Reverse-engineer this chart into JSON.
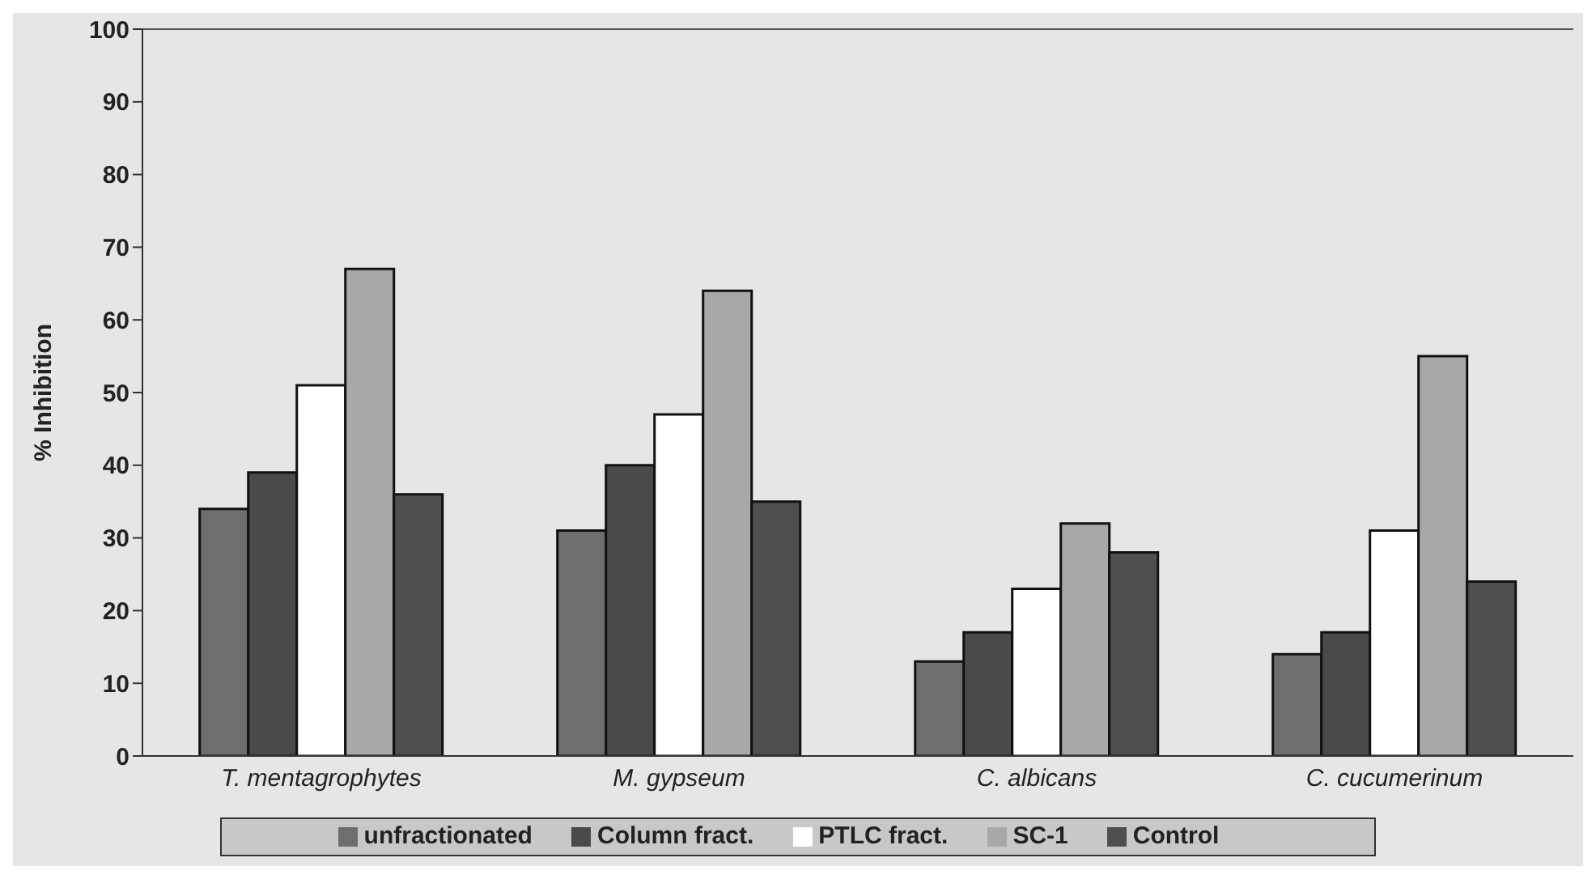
{
  "chart_data": {
    "type": "bar",
    "ylabel": "% Inhibition",
    "categories": [
      "T. mentagrophytes",
      "M. gypseum",
      "C. albicans",
      "C. cucumerinum"
    ],
    "series": [
      {
        "name": "unfractionated",
        "color": "#6e6e6e",
        "values": [
          34,
          31,
          13,
          14
        ]
      },
      {
        "name": "Column fract.",
        "color": "#4a4a4a",
        "values": [
          39,
          40,
          17,
          17
        ]
      },
      {
        "name": "PTLC fract.",
        "color": "#ffffff",
        "values": [
          51,
          47,
          23,
          31
        ]
      },
      {
        "name": "SC-1",
        "color": "#a8a8a8",
        "values": [
          67,
          64,
          32,
          55
        ]
      },
      {
        "name": "Control",
        "color": "#4f4f4f",
        "values": [
          36,
          35,
          28,
          24
        ]
      }
    ],
    "ylim": [
      0,
      100
    ],
    "yticks": [
      0,
      10,
      20,
      30,
      40,
      50,
      60,
      70,
      80,
      90,
      100
    ],
    "grid": false,
    "legend": "bottom"
  }
}
